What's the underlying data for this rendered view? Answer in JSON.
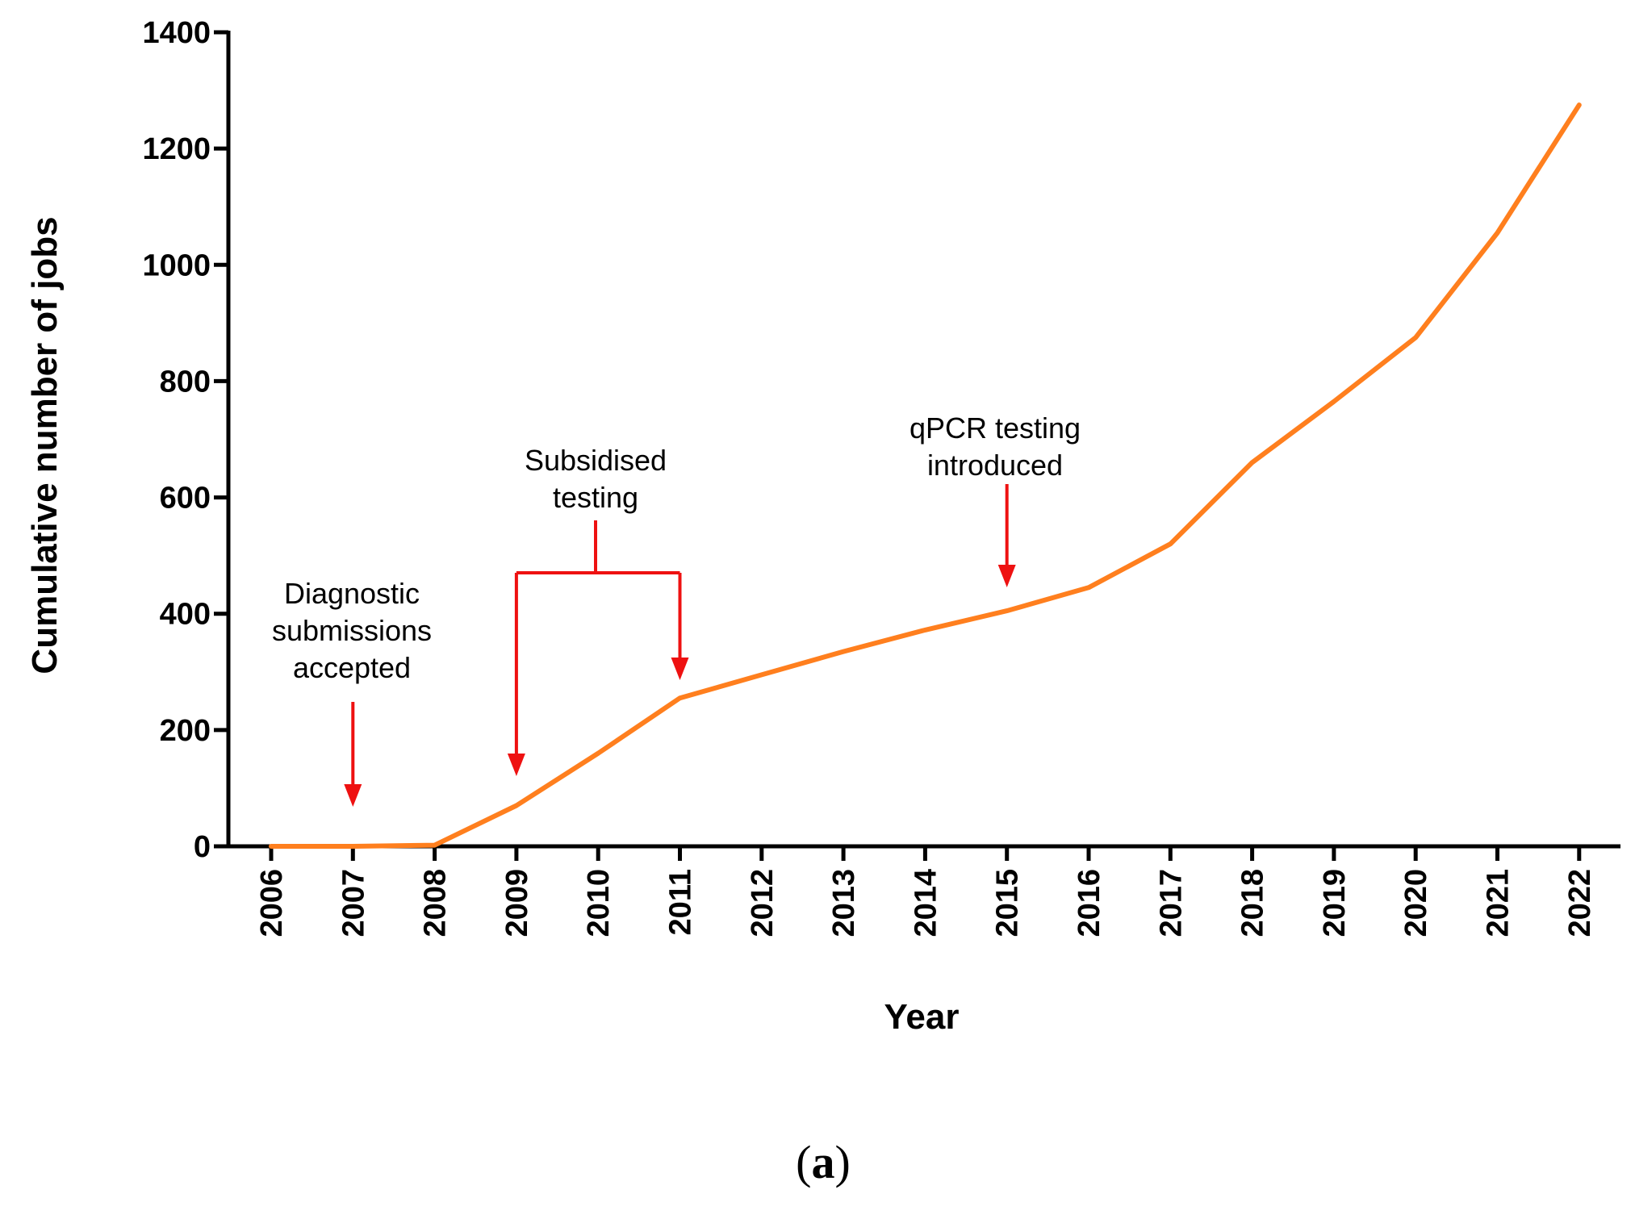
{
  "chart_data": {
    "type": "line",
    "title": "",
    "xlabel": "Year",
    "ylabel": "Cumulative number of jobs",
    "x": [
      "2006",
      "2007",
      "2008",
      "2009",
      "2010",
      "2011",
      "2012",
      "2013",
      "2014",
      "2015",
      "2016",
      "2017",
      "2018",
      "2019",
      "2020",
      "2021",
      "2022"
    ],
    "series": [
      {
        "name": "Cumulative number of jobs",
        "color": "#ff7f1e",
        "values": [
          0,
          0,
          2,
          70,
          160,
          255,
          295,
          335,
          372,
          405,
          445,
          520,
          660,
          765,
          875,
          1055,
          1275
        ]
      }
    ],
    "ylim": [
      0,
      1400
    ],
    "yticks": [
      0,
      200,
      400,
      600,
      800,
      1000,
      1200,
      1400
    ],
    "grid": false,
    "legend": "none",
    "annotations": [
      {
        "id": "diagnostic",
        "lines": [
          "Diagnostic",
          "submissions",
          "accepted"
        ],
        "arrow_years": [
          "2007"
        ]
      },
      {
        "id": "subsidised",
        "lines": [
          "Subsidised",
          "testing"
        ],
        "arrow_years": [
          "2009",
          "2011"
        ]
      },
      {
        "id": "qpcr",
        "lines": [
          "qPCR testing",
          "introduced"
        ],
        "arrow_years": [
          "2015"
        ]
      }
    ],
    "annotation_color": "#ee1111"
  },
  "panel_label": {
    "open": "(",
    "letter": "a",
    "close": ")"
  }
}
